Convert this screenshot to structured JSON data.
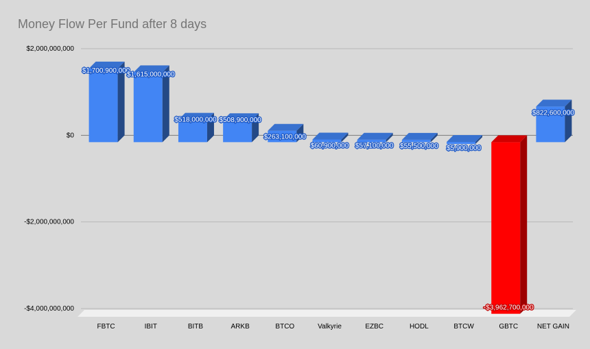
{
  "chart_data": {
    "type": "bar",
    "title": "Money Flow Per Fund after 8 days",
    "categories": [
      "FBTC",
      "IBIT",
      "BITB",
      "ARKB",
      "BTCO",
      "Valkyrie",
      "EZBC",
      "HODL",
      "BTCW",
      "GBTC",
      "NET GAIN"
    ],
    "values": [
      1700900000,
      1615000000,
      518000000,
      508900000,
      263100000,
      60900000,
      57100000,
      55500000,
      5900000,
      -3962700000,
      822600000
    ],
    "data_labels": [
      "$1,700,900,000",
      "$1,615,000,000",
      "$518,000,000",
      "$508,900,000",
      "$263,100,000",
      "$60,900,000",
      "$57,100,000",
      "$55,500,000",
      "$5,900,000",
      "-$3,962,700,000",
      "$822,600,000"
    ],
    "y_ticks": [
      2000000000,
      0,
      -2000000000,
      -4000000000
    ],
    "y_tick_labels": [
      "$2,000,000,000",
      "$0",
      "-$2,000,000,000",
      "-$4,000,000,000"
    ],
    "ylim": [
      -4000000000,
      2000000000
    ],
    "xlabel": "",
    "ylabel": "",
    "grid": true,
    "legend": "none",
    "style": "3d-column",
    "colors": {
      "positive": "#4285f4",
      "negative": "#ff0000",
      "positive_label_outline": "#1a56c4",
      "negative_label_outline": "#c00000",
      "gridline": "#b7b7b7",
      "background": "#d9d9d9",
      "floor": "#f0f0f0"
    }
  }
}
